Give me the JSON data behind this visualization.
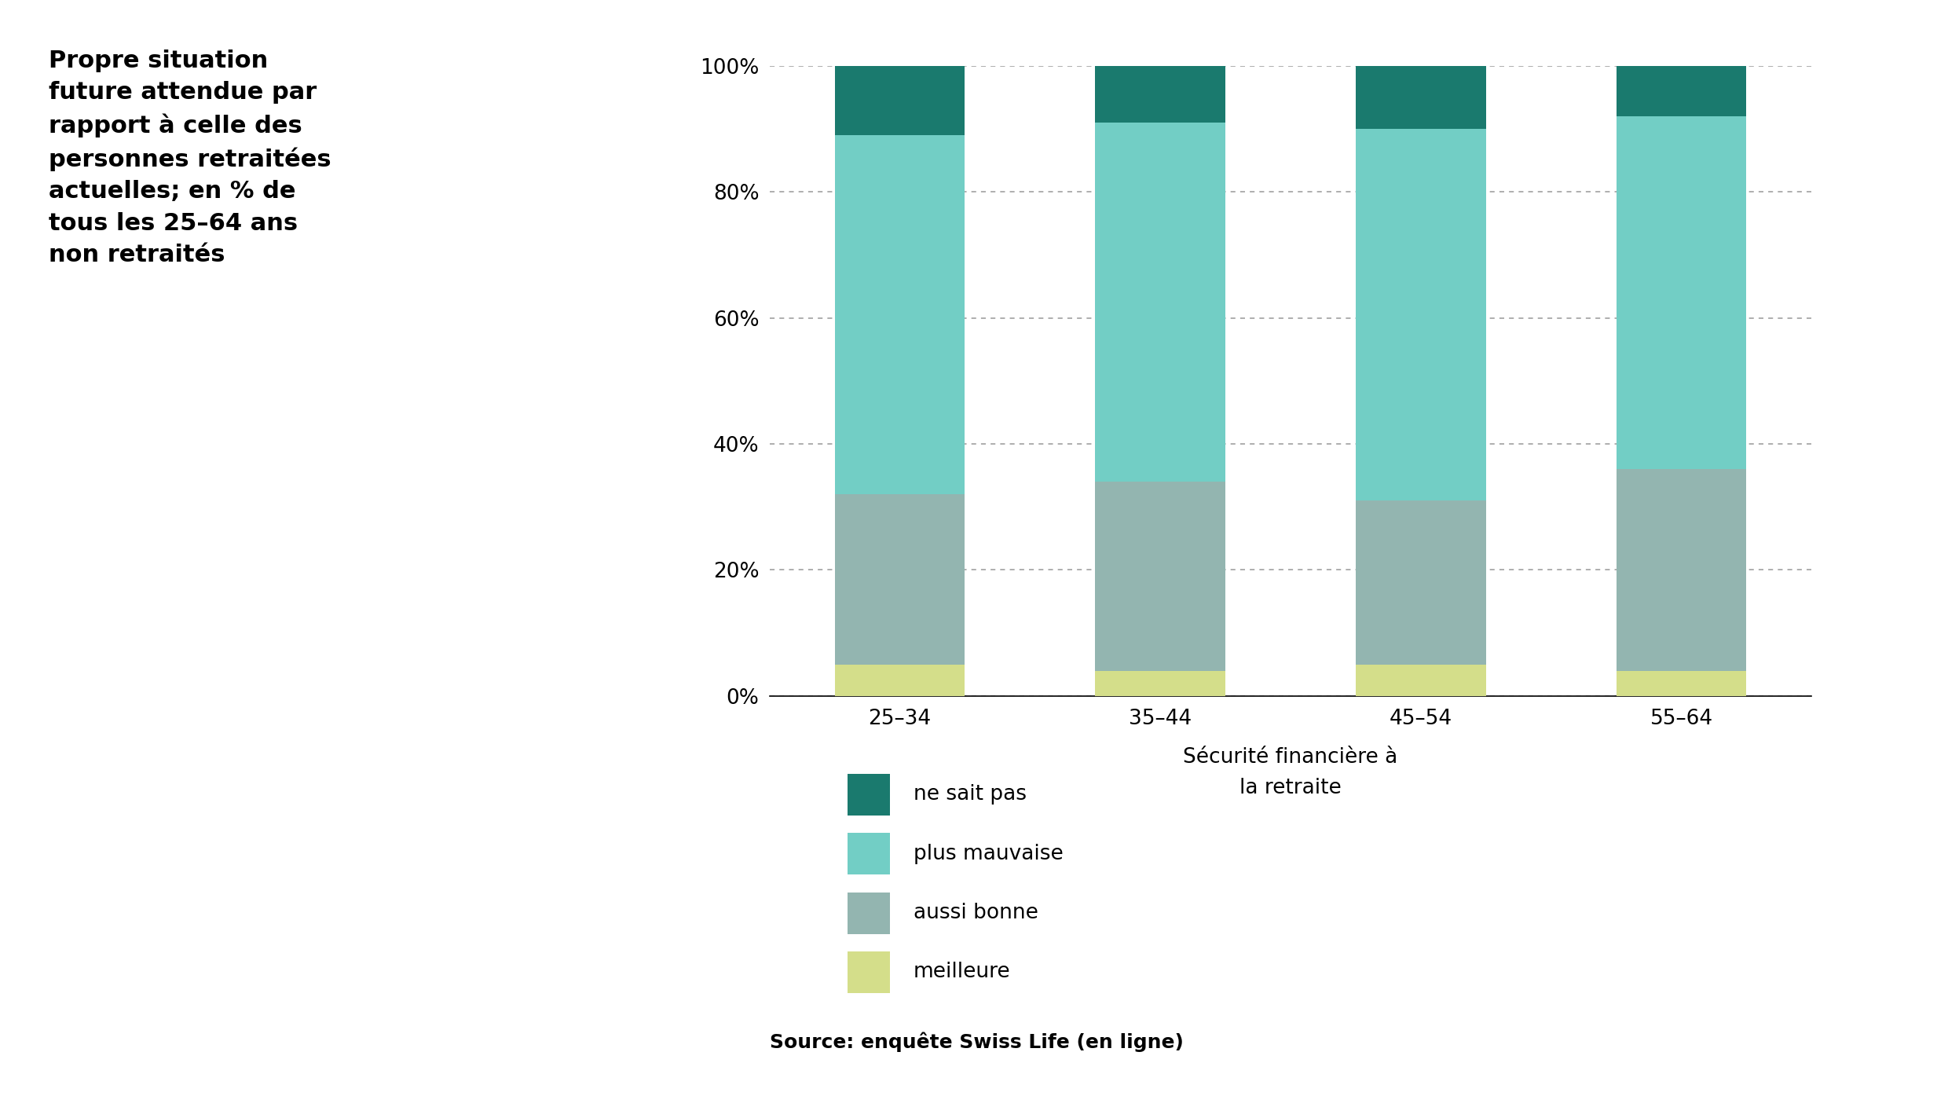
{
  "categories": [
    "25–34",
    "35–44",
    "45–54",
    "55–64"
  ],
  "series": {
    "meilleure": [
      5,
      4,
      5,
      4
    ],
    "aussi bonne": [
      27,
      30,
      26,
      32
    ],
    "plus mauvaise": [
      57,
      57,
      59,
      56
    ],
    "ne sait pas": [
      11,
      9,
      10,
      8
    ]
  },
  "colors": {
    "meilleure": "#d4de8a",
    "aussi bonne": "#93b5b0",
    "plus mauvaise": "#72cec5",
    "ne sait pas": "#1a7a6e"
  },
  "xlabel_line1": "Sécurité financière à",
  "xlabel_line2": "la retraite",
  "ylim": [
    0,
    100
  ],
  "yticks": [
    0,
    20,
    40,
    60,
    80,
    100
  ],
  "yticklabels": [
    "0%",
    "20%",
    "40%",
    "60%",
    "80%",
    "100%"
  ],
  "left_text_lines": [
    "Propre situation",
    "future attendue par",
    "rapport à celle des",
    "personnes retraitées",
    "actuelles; en % de",
    "tous les 25–64 ans",
    "non retraités"
  ],
  "legend_order": [
    "ne sait pas",
    "plus mauvaise",
    "aussi bonne",
    "meilleure"
  ],
  "source_text": "Source: enquête Swiss Life (en ligne)",
  "bar_width": 0.5,
  "background_color": "#ffffff",
  "fig_width": 24.8,
  "fig_height": 13.95,
  "dpi": 100
}
